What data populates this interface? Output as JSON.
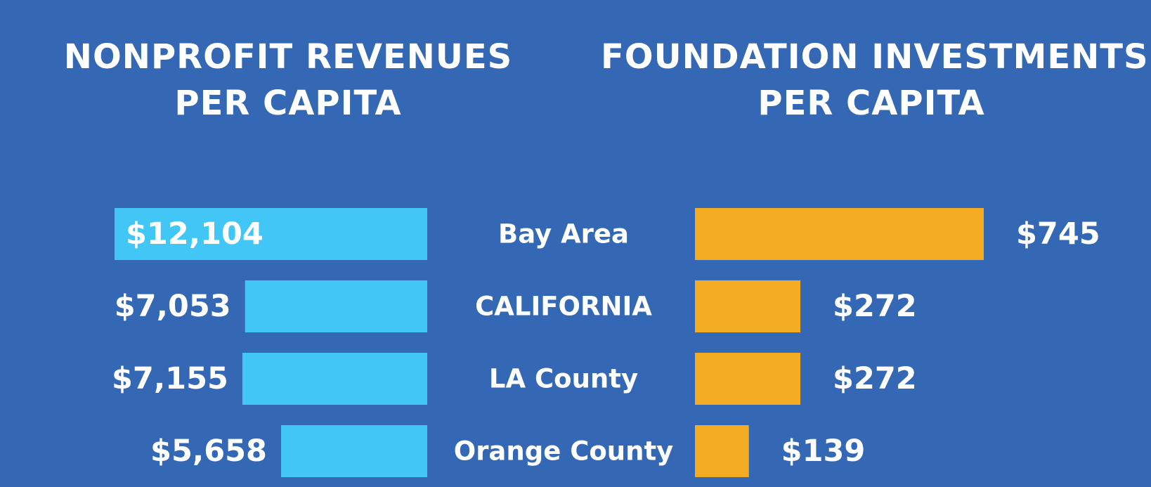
{
  "titles": {
    "left": [
      "NONPROFIT REVENUES",
      "PER CAPITA"
    ],
    "right": [
      "FOUNDATION INVESTMENTS",
      "PER CAPITA"
    ]
  },
  "colors": {
    "background": "#3468b5",
    "left_bar": "#41c6f5",
    "right_bar": "#f2ab22",
    "text": "#ffffff"
  },
  "chart_data": [
    {
      "type": "bar",
      "orientation": "horizontal",
      "direction": "right-to-left",
      "title": "NONPROFIT REVENUES PER CAPITA",
      "categories": [
        "Bay Area",
        "CALIFORNIA",
        "LA County",
        "Orange County"
      ],
      "values": [
        12104,
        7053,
        7155,
        5658
      ],
      "value_labels": [
        "$12,104",
        "$7,053",
        "$7,155",
        "$5,658"
      ],
      "xlim": [
        0,
        12104
      ],
      "grid": false
    },
    {
      "type": "bar",
      "orientation": "horizontal",
      "direction": "left-to-right",
      "title": "FOUNDATION INVESTMENTS PER CAPITA",
      "categories": [
        "Bay Area",
        "CALIFORNIA",
        "LA County",
        "Orange County"
      ],
      "values": [
        745,
        272,
        272,
        139
      ],
      "value_labels": [
        "$745",
        "$272",
        "$272",
        "$139"
      ],
      "xlim": [
        0,
        745
      ],
      "grid": false
    }
  ]
}
